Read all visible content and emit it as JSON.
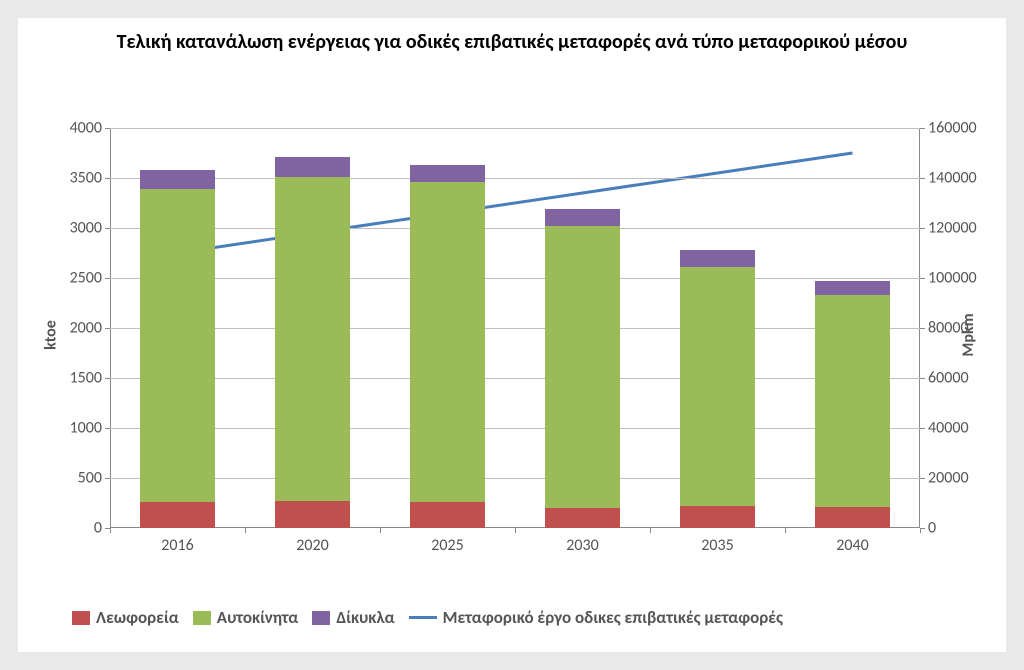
{
  "chart": {
    "type": "stacked-bar-with-line-dual-axis",
    "title": "Τελική κατανάλωση ενέργειας για οδικές επιβατικές μεταφορές ανά τύπο μεταφορικού μέσου",
    "title_fontsize": 20,
    "background_color": "#e9e9e9",
    "plot_background": "#ffffff",
    "grid_color": "#bfbfbf",
    "axis_color": "#888888",
    "tick_font_color": "#555555",
    "tick_fontsize": 16,
    "categories": [
      "2016",
      "2020",
      "2025",
      "2030",
      "2035",
      "2040"
    ],
    "bar_width_ratio": 0.55,
    "series": [
      {
        "key": "buses",
        "label": "Λεωφορεία",
        "color": "#c0504d",
        "values": [
          260,
          270,
          260,
          200,
          225,
          210
        ]
      },
      {
        "key": "cars",
        "label": "Αυτοκίνητα",
        "color": "#9bbb59",
        "values": [
          3130,
          3240,
          3200,
          2820,
          2390,
          2120
        ]
      },
      {
        "key": "two_wheel",
        "label": "Δίκυκλα",
        "color": "#8064a2",
        "values": [
          190,
          200,
          170,
          175,
          170,
          145
        ]
      }
    ],
    "line_series": {
      "label": "Μεταφορικό έργο οδικες επιβατικές μεταφορές",
      "color": "#4a7ebb",
      "line_width": 3,
      "values": [
        110000,
        118000,
        126000,
        134000,
        142000,
        150000
      ]
    },
    "y_left": {
      "label": "ktoe",
      "min": 0,
      "max": 4000,
      "step": 500
    },
    "y_right": {
      "label": "Mpkm",
      "min": 0,
      "max": 160000,
      "step": 20000
    }
  }
}
